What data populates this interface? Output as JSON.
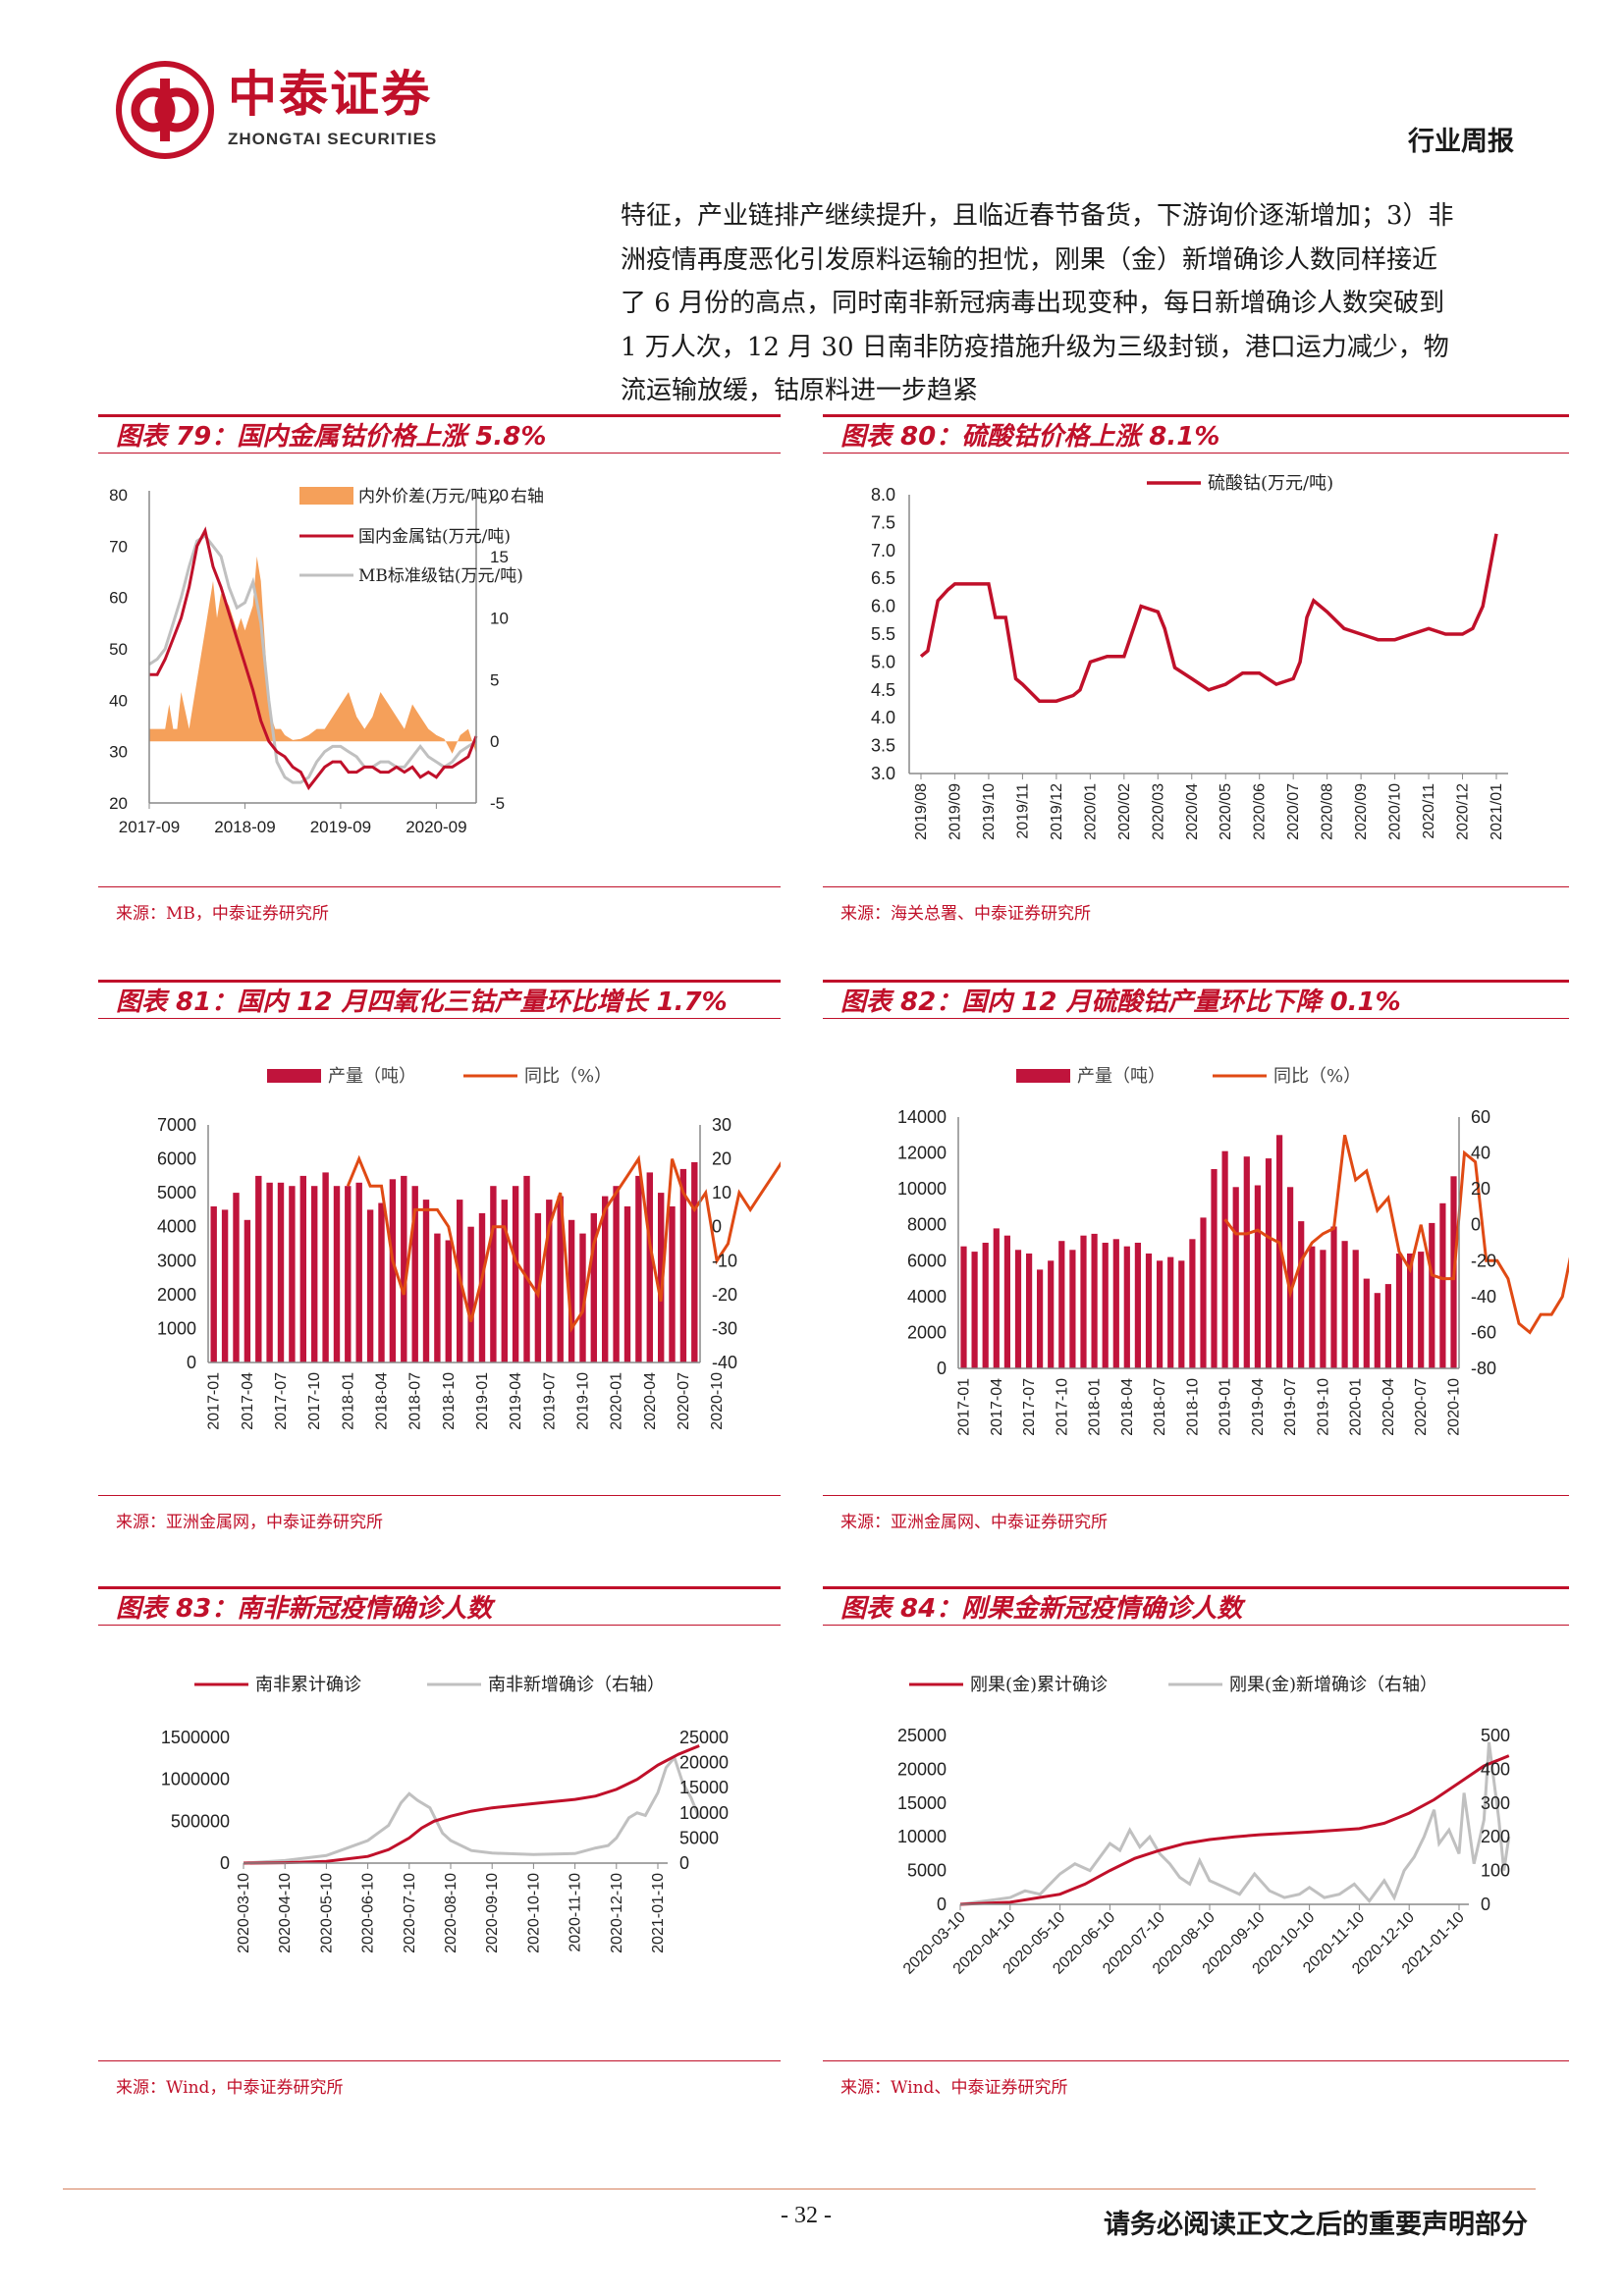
{
  "header": {
    "logo_cn": "中泰证券",
    "logo_en": "ZHONGTAI SECURITIES",
    "report_type": "行业周报"
  },
  "body_lines": [
    "特征，产业链排产继续提升，且临近春节备货，下游询价逐渐增加；3）非",
    "洲疫情再度恶化引发原料运输的担忧，刚果（金）新增确诊人数同样接近",
    "了 6 月份的高点，同时南非新冠病毒出现变种，每日新增确诊人数突破到",
    "1 万人次，12 月 30 日南非防疫措施升级为三级封锁，港口运力减少，物",
    "流运输放缓，钴原料进一步趋紧"
  ],
  "figures": [
    {
      "title": "图表 79：国内金属钴价格上涨 5.8%",
      "source": "来源：MB，中泰证券研究所"
    },
    {
      "title": "图表 80：硫酸钴价格上涨 8.1%",
      "source": "来源：海关总署、中泰证券研究所"
    },
    {
      "title": "图表 81：国内 12 月四氧化三钴产量环比增长 1.7%",
      "source": "来源：亚洲金属网，中泰证券研究所"
    },
    {
      "title": "图表 82：国内 12 月硫酸钴产量环比下降 0.1%",
      "source": "来源：亚洲金属网、中泰证券研究所"
    },
    {
      "title": "图表 83：南非新冠疫情确诊人数",
      "source": "来源：Wind，中泰证券研究所"
    },
    {
      "title": "图表 84：刚果金新冠疫情确诊人数",
      "source": "来源：Wind、中泰证券研究所"
    }
  ],
  "chart_data": [
    {
      "type": "line",
      "legend": [
        "内外价差(万元/吨)，右轴",
        "国内金属钴(万元/吨)",
        "MB标准级钴(万元/吨)"
      ],
      "x_ticks": [
        "2017-09",
        "2018-09",
        "2019-09",
        "2020-09"
      ],
      "ylim": [
        20,
        80
      ],
      "y_ticks": [
        20,
        30,
        40,
        50,
        60,
        70,
        80
      ],
      "y2lim": [
        -5,
        20
      ],
      "y2_ticks": [
        -5,
        0,
        5,
        10,
        15,
        20
      ],
      "x_range": [
        0,
        41
      ],
      "series": [
        {
          "name": "内外价差(万元/吨)，右轴",
          "axis": "right",
          "kind": "area",
          "x": [
            0,
            1,
            2,
            2.5,
            3,
            3.5,
            4,
            5,
            6,
            7,
            7.5,
            8,
            8.5,
            9,
            10,
            10.5,
            11,
            11.5,
            12,
            12.5,
            13,
            13.5,
            14,
            14.5,
            15,
            15.3,
            15.8,
            16.5,
            17,
            17.5,
            18,
            19,
            20,
            21,
            22,
            23,
            24,
            25,
            26,
            27,
            28,
            29,
            30,
            31,
            32,
            33,
            34,
            35,
            36,
            37,
            38,
            39,
            40,
            41
          ],
          "y": [
            1,
            1,
            1,
            3,
            1,
            1,
            4,
            1,
            5,
            9,
            11,
            13,
            10,
            12,
            11,
            10,
            9,
            10,
            9,
            10,
            11,
            15,
            13,
            8,
            3,
            2,
            1,
            1,
            0.5,
            0.3,
            0.1,
            0.2,
            0.5,
            1,
            1,
            2,
            3,
            4,
            2,
            1,
            2,
            4,
            3,
            2,
            1,
            3,
            2,
            1,
            0.5,
            0.2,
            -1,
            0.5,
            1,
            -1
          ]
        },
        {
          "name": "国内金属钴(万元/吨)",
          "axis": "left",
          "x": [
            0,
            1,
            2,
            3,
            4,
            5,
            6,
            7,
            8,
            9,
            10,
            11,
            12,
            13,
            14,
            15,
            16,
            17,
            18,
            19,
            20,
            21,
            22,
            23,
            24,
            25,
            26,
            27,
            28,
            29,
            30,
            31,
            32,
            33,
            34,
            35,
            36,
            37,
            38,
            39,
            40,
            41
          ],
          "y": [
            45,
            45,
            48,
            52,
            56,
            62,
            70,
            73,
            66,
            62,
            57,
            52,
            47,
            42,
            36,
            32,
            30,
            29,
            27,
            26,
            23,
            25,
            27,
            28,
            28,
            26,
            26,
            27,
            27,
            26,
            26,
            27,
            26,
            27,
            25,
            26,
            25,
            27,
            27,
            28,
            29,
            33
          ]
        },
        {
          "name": "MB标准级钴(万元/吨)",
          "axis": "left",
          "x": [
            0,
            1,
            2,
            3,
            4,
            5,
            6,
            7,
            8,
            9,
            10,
            11,
            12,
            13,
            14,
            15,
            16,
            17,
            18,
            19,
            20,
            21,
            22,
            23,
            24,
            25,
            26,
            27,
            28,
            29,
            30,
            31,
            32,
            33,
            34,
            35,
            36,
            37,
            38,
            39,
            40,
            41
          ],
          "y": [
            47,
            48,
            50,
            55,
            60,
            66,
            71,
            72,
            70,
            68,
            62,
            58,
            59,
            63,
            55,
            40,
            28,
            25,
            24,
            24,
            25,
            28,
            30,
            31,
            31,
            30,
            29,
            27,
            27,
            28,
            28,
            27,
            27,
            29,
            31,
            29,
            28,
            27,
            28,
            30,
            31,
            32
          ]
        }
      ]
    },
    {
      "type": "line",
      "legend": [
        "硫酸钴(万元/吨)"
      ],
      "categories": [
        "2019/08",
        "2019/09",
        "2019/10",
        "2019/11",
        "2019/12",
        "2020/01",
        "2020/02",
        "2020/03",
        "2020/04",
        "2020/05",
        "2020/06",
        "2020/07",
        "2020/08",
        "2020/09",
        "2020/10",
        "2020/11",
        "2020/12",
        "2021/01"
      ],
      "ylim": [
        3.0,
        8.0
      ],
      "y_ticks": [
        3.0,
        3.5,
        4.0,
        4.5,
        5.0,
        5.5,
        6.0,
        6.5,
        7.0,
        7.5,
        8.0
      ],
      "series": [
        {
          "name": "硫酸钴(万元/吨)",
          "x": [
            0,
            0.2,
            0.5,
            0.8,
            1,
            1.5,
            2,
            2.2,
            2.5,
            2.8,
            3,
            3.5,
            4,
            4.5,
            4.7,
            5,
            5.5,
            5.7,
            6,
            6.5,
            7,
            7.2,
            7.5,
            8,
            8.5,
            9,
            9.5,
            10,
            10.5,
            11,
            11.2,
            11.4,
            11.6,
            12,
            12.5,
            13,
            13.5,
            14,
            14.5,
            15,
            15.5,
            16,
            16.3,
            16.6,
            17
          ],
          "y": [
            5.1,
            5.2,
            6.1,
            6.3,
            6.4,
            6.4,
            6.4,
            5.8,
            5.8,
            4.7,
            4.6,
            4.3,
            4.3,
            4.4,
            4.5,
            5.0,
            5.1,
            5.1,
            5.1,
            6.0,
            5.9,
            5.6,
            4.9,
            4.7,
            4.5,
            4.6,
            4.8,
            4.8,
            4.6,
            4.7,
            5.0,
            5.8,
            6.1,
            5.9,
            5.6,
            5.5,
            5.4,
            5.4,
            5.5,
            5.6,
            5.5,
            5.5,
            5.6,
            6.0,
            7.3
          ]
        }
      ]
    },
    {
      "type": "bar",
      "legend": [
        "产量（吨）",
        "同比（%）"
      ],
      "x_ticks": [
        "2017-01",
        "2017-04",
        "2017-07",
        "2017-10",
        "2018-01",
        "2018-04",
        "2018-07",
        "2018-10",
        "2019-01",
        "2019-04",
        "2019-07",
        "2019-10",
        "2020-01",
        "2020-04",
        "2020-07",
        "2020-10"
      ],
      "ylim": [
        0,
        7000
      ],
      "y_ticks": [
        0,
        1000,
        2000,
        3000,
        4000,
        5000,
        6000,
        7000
      ],
      "y2lim": [
        -40,
        30
      ],
      "y2_ticks": [
        -40,
        -30,
        -20,
        -10,
        0,
        10,
        20,
        30
      ],
      "series": [
        {
          "name": "产量（吨）",
          "kind": "bar",
          "values": [
            4600,
            4500,
            5000,
            4200,
            5500,
            5300,
            5300,
            5200,
            5500,
            5200,
            5600,
            5200,
            5200,
            5300,
            4500,
            4700,
            5400,
            5500,
            5200,
            4800,
            3800,
            3600,
            4800,
            4000,
            4400,
            5200,
            4800,
            5200,
            5500,
            4400,
            4800,
            4900,
            4200,
            3800,
            4400,
            4900,
            5200,
            4600,
            5500,
            5600,
            5000,
            4600,
            5700,
            5900
          ]
        },
        {
          "name": "同比（%）",
          "kind": "line",
          "start_index": 12,
          "values": [
            12,
            20,
            12,
            12,
            -10,
            -20,
            5,
            5,
            5,
            0,
            -15,
            -28,
            -15,
            0,
            0,
            -10,
            -15,
            -20,
            0,
            10,
            -30,
            -25,
            -5,
            5,
            10,
            15,
            20,
            -5,
            -22,
            20,
            10,
            5,
            10,
            -10,
            -5,
            10,
            5,
            10,
            15,
            20,
            12,
            -10,
            -5,
            25
          ]
        }
      ]
    },
    {
      "type": "bar",
      "legend": [
        "产量（吨）",
        "同比（%）"
      ],
      "x_ticks": [
        "2017-01",
        "2017-04",
        "2017-07",
        "2017-10",
        "2018-01",
        "2018-04",
        "2018-07",
        "2018-10",
        "2019-01",
        "2019-04",
        "2019-07",
        "2019-10",
        "2020-01",
        "2020-04",
        "2020-07",
        "2020-10"
      ],
      "ylim": [
        0,
        14000
      ],
      "y_ticks": [
        0,
        2000,
        4000,
        6000,
        8000,
        10000,
        12000,
        14000
      ],
      "y2lim": [
        -80,
        60
      ],
      "y2_ticks": [
        -80,
        -60,
        -40,
        -20,
        0,
        20,
        40,
        60
      ],
      "series": [
        {
          "name": "产量（吨）",
          "kind": "bar",
          "values": [
            6800,
            6500,
            7000,
            7800,
            7400,
            6600,
            6400,
            5500,
            6000,
            7100,
            6600,
            7400,
            7500,
            7000,
            7200,
            6800,
            7000,
            6400,
            6000,
            6200,
            6000,
            7200,
            8400,
            11100,
            12100,
            10100,
            11800,
            10200,
            11700,
            13000,
            10100,
            8200,
            6800,
            6600,
            7900,
            7100,
            6600,
            5000,
            4200,
            4700,
            6400,
            6400,
            6500,
            8100,
            9200,
            10700
          ]
        },
        {
          "name": "同比（%）",
          "kind": "line",
          "start_index": 24,
          "values": [
            3,
            -5,
            -5,
            -3,
            -7,
            -10,
            -38,
            -20,
            -10,
            -5,
            -2,
            50,
            25,
            30,
            8,
            15,
            -15,
            -25,
            0,
            -28,
            -30,
            -30,
            40,
            35,
            -20,
            -20,
            -30,
            -55,
            -60,
            -50,
            -50,
            -40,
            -10,
            10,
            35,
            30,
            5,
            25
          ]
        }
      ]
    },
    {
      "type": "line",
      "legend": [
        "南非累计确诊",
        "南非新增确诊（右轴）"
      ],
      "x_ticks": [
        "2020-03-10",
        "2020-04-10",
        "2020-05-10",
        "2020-06-10",
        "2020-07-10",
        "2020-08-10",
        "2020-09-10",
        "2020-10-10",
        "2020-11-10",
        "2020-12-10",
        "2021-01-10"
      ],
      "ylim": [
        0,
        1500000
      ],
      "y_ticks": [
        0,
        500000,
        1000000,
        1500000
      ],
      "y2lim": [
        0,
        25000
      ],
      "y2_ticks": [
        0,
        5000,
        10000,
        15000,
        20000,
        25000
      ],
      "series": [
        {
          "name": "南非累计确诊",
          "axis": "left",
          "x": [
            0,
            1,
            2,
            3,
            3.5,
            4,
            4.3,
            4.6,
            5,
            5.5,
            6,
            7,
            8,
            8.5,
            9,
            9.5,
            10,
            10.5,
            11
          ],
          "y": [
            0,
            5000,
            20000,
            80000,
            160000,
            300000,
            420000,
            500000,
            560000,
            620000,
            660000,
            710000,
            760000,
            800000,
            880000,
            1000000,
            1170000,
            1300000,
            1400000
          ]
        },
        {
          "name": "南非新增确诊（右轴）",
          "axis": "right",
          "x": [
            0,
            1,
            2,
            3,
            3.5,
            3.8,
            4,
            4.2,
            4.5,
            4.8,
            5,
            5.5,
            6,
            7,
            8,
            8.5,
            8.8,
            9,
            9.3,
            9.5,
            9.7,
            10,
            10.2,
            10.4,
            10.6,
            10.8,
            11
          ],
          "y": [
            0,
            500,
            1500,
            4500,
            7500,
            12000,
            13800,
            12500,
            11000,
            6000,
            4500,
            2500,
            2000,
            1700,
            1900,
            3000,
            3500,
            5000,
            9000,
            10000,
            9500,
            14000,
            19000,
            21000,
            16000,
            13000,
            9000
          ]
        }
      ]
    },
    {
      "type": "line",
      "legend": [
        "刚果(金)累计确诊",
        "刚果(金)新增确诊（右轴）"
      ],
      "x_ticks": [
        "2020-03-10",
        "2020-04-10",
        "2020-05-10",
        "2020-06-10",
        "2020-07-10",
        "2020-08-10",
        "2020-09-10",
        "2020-10-10",
        "2020-11-10",
        "2020-12-10",
        "2021-01-10"
      ],
      "ylim": [
        0,
        25000
      ],
      "y_ticks": [
        0,
        5000,
        10000,
        15000,
        20000,
        25000
      ],
      "y2lim": [
        0,
        500
      ],
      "y2_ticks": [
        0,
        100,
        200,
        300,
        400,
        500
      ],
      "series": [
        {
          "name": "刚果(金)累计确诊",
          "axis": "left",
          "x": [
            0,
            1,
            2,
            2.5,
            3,
            3.5,
            4,
            4.5,
            5,
            5.5,
            6,
            7,
            8,
            8.5,
            9,
            9.5,
            10,
            10.5,
            11
          ],
          "y": [
            0,
            300,
            1500,
            3000,
            5000,
            6800,
            8000,
            9000,
            9600,
            10000,
            10300,
            10700,
            11200,
            12000,
            13500,
            15500,
            18000,
            20500,
            22000
          ]
        },
        {
          "name": "刚果(金)新增确诊（右轴）",
          "axis": "right",
          "x": [
            0,
            0.5,
            1,
            1.3,
            1.6,
            2,
            2.3,
            2.6,
            3,
            3.2,
            3.4,
            3.6,
            3.8,
            4,
            4.2,
            4.4,
            4.6,
            4.8,
            5,
            5.3,
            5.6,
            5.9,
            6.2,
            6.5,
            6.8,
            7,
            7.3,
            7.6,
            7.9,
            8.2,
            8.5,
            8.7,
            8.9,
            9.1,
            9.3,
            9.5,
            9.6,
            9.8,
            10,
            10.1,
            10.3,
            10.5,
            10.6,
            10.8,
            10.9,
            11
          ],
          "y": [
            0,
            10,
            20,
            40,
            30,
            90,
            120,
            100,
            180,
            160,
            220,
            170,
            200,
            150,
            120,
            80,
            60,
            130,
            70,
            50,
            30,
            90,
            40,
            20,
            30,
            50,
            20,
            30,
            60,
            10,
            70,
            20,
            100,
            140,
            200,
            280,
            180,
            220,
            150,
            330,
            120,
            250,
            480,
            250,
            100,
            200
          ]
        }
      ]
    }
  ],
  "footer": {
    "page_number": "- 32 -",
    "disclaimer": "请务必阅读正文之后的重要声明部分"
  },
  "colors": {
    "brand_red": "#c0102a",
    "area_orange": "#f5a05a",
    "gray_line": "#c0c0c0",
    "bar_red": "#c0143c",
    "line_orange": "#e04a14"
  }
}
